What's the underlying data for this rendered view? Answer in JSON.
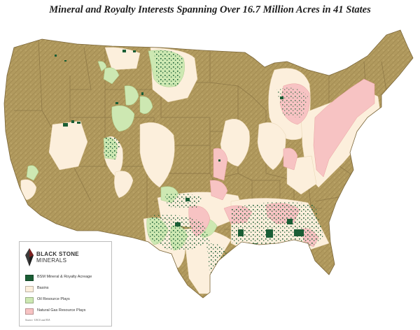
{
  "title": "Mineral and Royalty Interests Spanning Over 16.7 Million Acres in 41 States",
  "colors": {
    "land": "#b19a5e",
    "land_dark": "#96804a",
    "state_border": "#8a7444",
    "basin": "#fcefdc",
    "oil": "#cde8b2",
    "gas": "#f7c3c3",
    "acreage": "#1a5e35"
  },
  "legend": {
    "logo": {
      "name_line1": "BLACK STONE",
      "name_line2": "MINERALS",
      "icon": "diamond-logo-icon"
    },
    "items": [
      {
        "label": "BSM Mineral & Royalty Acreage",
        "color": "#1a5e35"
      },
      {
        "label": "Basins",
        "color": "#fcefdc"
      },
      {
        "label": "Oil Resource Plays",
        "color": "#cde8b2"
      },
      {
        "label": "Natural Gas Resource Plays",
        "color": "#f7c3c3"
      }
    ],
    "source": "Source: USGS and EIA"
  }
}
